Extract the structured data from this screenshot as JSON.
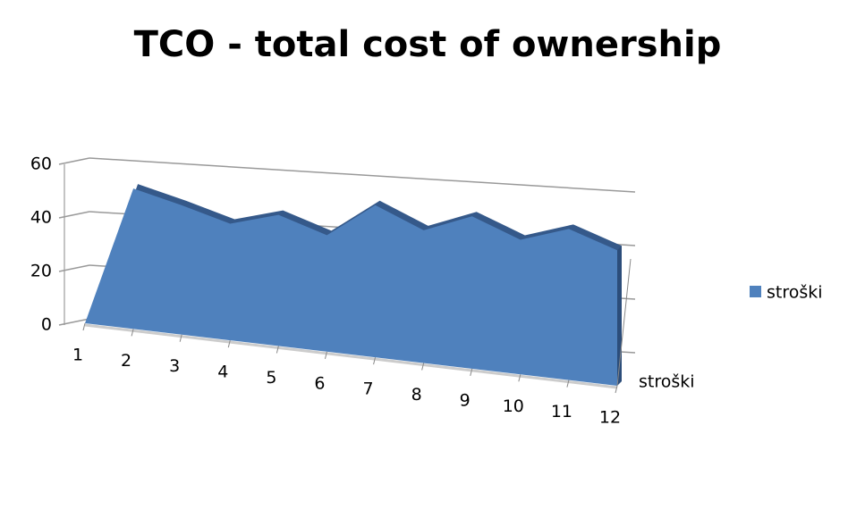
{
  "chart_data": {
    "type": "area",
    "title": "TCO - total cost of ownership",
    "categories": [
      "1",
      "2",
      "3",
      "4",
      "5",
      "6",
      "7",
      "8",
      "9",
      "10",
      "11",
      "12"
    ],
    "series": [
      {
        "name": "stroški",
        "color": "#4f81bd",
        "values": [
          0,
          50,
          44,
          38,
          41,
          35,
          44,
          37,
          41,
          35,
          38,
          33
        ]
      }
    ],
    "ylim": [
      0,
      60
    ],
    "yticks": [
      0,
      20,
      40,
      60
    ],
    "grid": true,
    "legend": "right"
  }
}
